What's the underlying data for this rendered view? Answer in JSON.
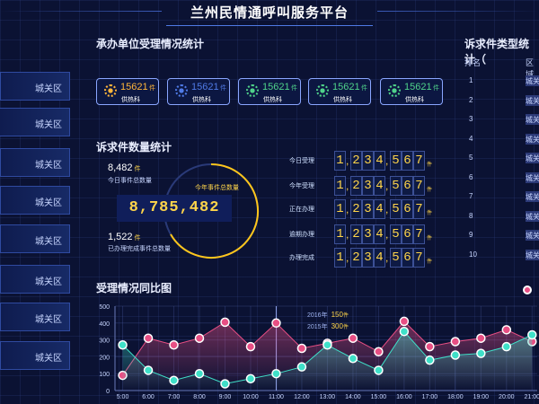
{
  "header": {
    "title": "兰州民情通呼叫服务平台"
  },
  "sidebar": {
    "items": [
      {
        "label": "城关区"
      },
      {
        "label": "城关区"
      },
      {
        "label": "城关区"
      },
      {
        "label": "城关区"
      },
      {
        "label": "城关区"
      },
      {
        "label": "城关区"
      },
      {
        "label": "城关区"
      },
      {
        "label": "城关区"
      }
    ]
  },
  "units_section": {
    "title": "承办单位受理情况统计",
    "cards": [
      {
        "value": "15621",
        "unit": "件",
        "dept": "供热科",
        "color": "#ffb53a"
      },
      {
        "value": "15621",
        "unit": "件",
        "dept": "供热科",
        "color": "#4f7ae6"
      },
      {
        "value": "15621",
        "unit": "件",
        "dept": "供热科",
        "color": "#4fd28a"
      },
      {
        "value": "15621",
        "unit": "件",
        "dept": "供热科",
        "color": "#4fd28a"
      },
      {
        "value": "15621",
        "unit": "件",
        "dept": "供热科",
        "color": "#4fd28a"
      }
    ]
  },
  "count_section": {
    "title": "诉求件数量统计",
    "today_num": "8,482",
    "today_unit": "件",
    "today_label": "今日事件总数量",
    "total_label": "今年事件总数量",
    "total_value": "8,785,482",
    "done_num": "1,522",
    "done_unit": "件",
    "done_label": "已办理完成事件总数量"
  },
  "digit_rows": [
    {
      "label": "今日受理",
      "digits": [
        "1",
        "2",
        "3",
        "4",
        "5",
        "6",
        "7"
      ],
      "unit": "件"
    },
    {
      "label": "今年受理",
      "digits": [
        "1",
        "2",
        "3",
        "4",
        "5",
        "6",
        "7"
      ],
      "unit": "件"
    },
    {
      "label": "正在办理",
      "digits": [
        "1",
        "2",
        "3",
        "4",
        "5",
        "6",
        "7"
      ],
      "unit": "件"
    },
    {
      "label": "逾期办理",
      "digits": [
        "1",
        "2",
        "3",
        "4",
        "5",
        "6",
        "7"
      ],
      "unit": "件"
    },
    {
      "label": "办理完成",
      "digits": [
        "1",
        "2",
        "3",
        "4",
        "5",
        "6",
        "7"
      ],
      "unit": "件"
    }
  ],
  "type_section": {
    "title": "诉求件类型统计（",
    "col_rank": "排名",
    "col_region": "区域",
    "rows": [
      {
        "rank": "1",
        "region": "城关"
      },
      {
        "rank": "2",
        "region": "城关"
      },
      {
        "rank": "3",
        "region": "城关"
      },
      {
        "rank": "4",
        "region": "城关"
      },
      {
        "rank": "5",
        "region": "城关"
      },
      {
        "rank": "6",
        "region": "城关"
      },
      {
        "rank": "7",
        "region": "城关"
      },
      {
        "rank": "8",
        "region": "城关"
      },
      {
        "rank": "9",
        "region": "城关"
      },
      {
        "rank": "10",
        "region": "城关"
      }
    ]
  },
  "chart_section": {
    "title": "受理情况同比图",
    "tooltip": {
      "row1_label": "2016年",
      "row1_value": "150",
      "row1_unit": "件",
      "row2_label": "2015年",
      "row2_value": "300",
      "row2_unit": "件"
    }
  },
  "chart_data": {
    "type": "area",
    "x": [
      "5:00",
      "6:00",
      "7:00",
      "8:00",
      "9:00",
      "10:00",
      "11:00",
      "12:00",
      "13:00",
      "14:00",
      "15:00",
      "16:00",
      "17:00",
      "18:00",
      "19:00",
      "20:00",
      "21:00"
    ],
    "ylim": [
      0,
      500
    ],
    "yticks": [
      0,
      100,
      200,
      300,
      400,
      500
    ],
    "series": [
      {
        "values": [
          90,
          310,
          270,
          310,
          405,
          260,
          400,
          250,
          280,
          310,
          230,
          410,
          260,
          290,
          310,
          360,
          290
        ],
        "color": "#e84f84"
      },
      {
        "values": [
          270,
          120,
          60,
          100,
          40,
          70,
          100,
          140,
          270,
          190,
          120,
          350,
          180,
          210,
          220,
          260,
          330
        ],
        "color": "#3fe0c8"
      }
    ],
    "colors": {
      "pink": "#e84f84",
      "teal": "#3fe0c8"
    }
  }
}
